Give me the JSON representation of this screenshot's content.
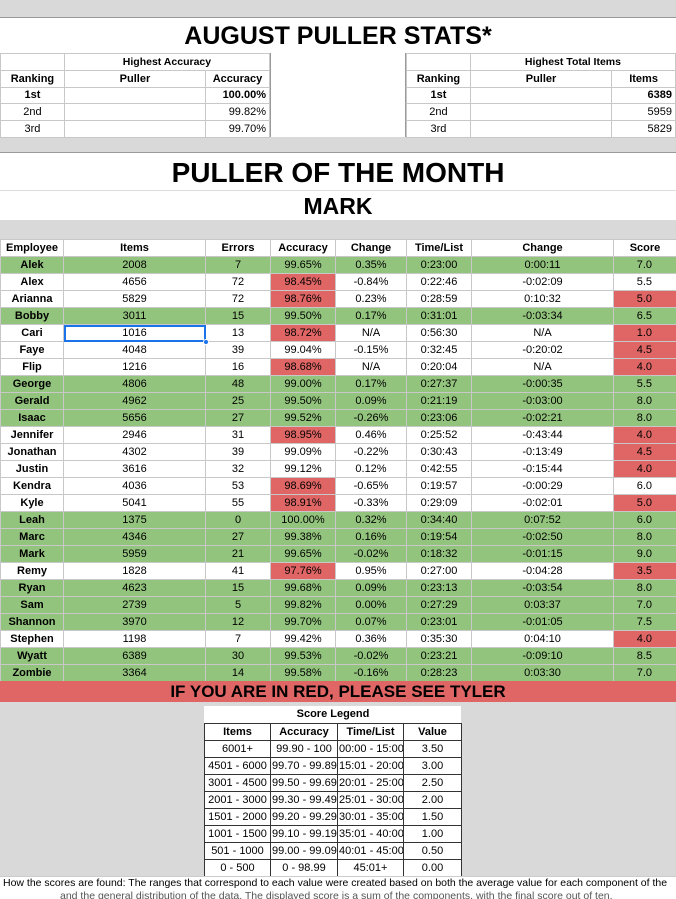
{
  "title": "AUGUST PULLER STATS*",
  "highest_accuracy": {
    "title": "Highest Accuracy",
    "headers": [
      "Ranking",
      "Puller",
      "Accuracy"
    ],
    "rows": [
      {
        "rank": "1st",
        "puller": "",
        "value": "100.00%"
      },
      {
        "rank": "2nd",
        "puller": "",
        "value": "99.82%"
      },
      {
        "rank": "3rd",
        "puller": "",
        "value": "99.70%"
      }
    ]
  },
  "highest_items": {
    "title": "Highest Total Items",
    "headers": [
      "Ranking",
      "Puller",
      "Items"
    ],
    "rows": [
      {
        "rank": "1st",
        "puller": "",
        "value": "6389"
      },
      {
        "rank": "2nd",
        "puller": "",
        "value": "5959"
      },
      {
        "rank": "3rd",
        "puller": "",
        "value": "5829"
      }
    ]
  },
  "puller_of_month": {
    "title": "PULLER OF THE MONTH",
    "name": "MARK"
  },
  "table": {
    "headers": [
      "Employee",
      "Items",
      "Errors",
      "Accuracy",
      "Change",
      "Time/List",
      "Change",
      "Score"
    ],
    "rows": [
      {
        "emp": "Alek",
        "items": "2008",
        "errors": "7",
        "acc": "99.65%",
        "chg": "0.35%",
        "time": "0:23:00",
        "tchg": "0:00:11",
        "score": "7.0",
        "row": "g",
        "acc_red": false,
        "score_red": false
      },
      {
        "emp": "Alex",
        "items": "4656",
        "errors": "72",
        "acc": "98.45%",
        "chg": "-0.84%",
        "time": "0:22:46",
        "tchg": "-0:02:09",
        "score": "5.5",
        "row": "w",
        "acc_red": true,
        "score_red": false
      },
      {
        "emp": "Arianna",
        "items": "5829",
        "errors": "72",
        "acc": "98.76%",
        "chg": "0.23%",
        "time": "0:28:59",
        "tchg": "0:10:32",
        "score": "5.0",
        "row": "w",
        "acc_red": true,
        "score_red": true
      },
      {
        "emp": "Bobby",
        "items": "3011",
        "errors": "15",
        "acc": "99.50%",
        "chg": "0.17%",
        "time": "0:31:01",
        "tchg": "-0:03:34",
        "score": "6.5",
        "row": "g",
        "acc_red": false,
        "score_red": false
      },
      {
        "emp": "Cari",
        "items": "1016",
        "errors": "13",
        "acc": "98.72%",
        "chg": "N/A",
        "time": "0:56:30",
        "tchg": "N/A",
        "score": "1.0",
        "row": "w",
        "acc_red": true,
        "score_red": true
      },
      {
        "emp": "Faye",
        "items": "4048",
        "errors": "39",
        "acc": "99.04%",
        "chg": "-0.15%",
        "time": "0:32:45",
        "tchg": "-0:20:02",
        "score": "4.5",
        "row": "w",
        "acc_red": false,
        "score_red": true
      },
      {
        "emp": "Flip",
        "items": "1216",
        "errors": "16",
        "acc": "98.68%",
        "chg": "N/A",
        "time": "0:20:04",
        "tchg": "N/A",
        "score": "4.0",
        "row": "w",
        "acc_red": true,
        "score_red": true
      },
      {
        "emp": "George",
        "items": "4806",
        "errors": "48",
        "acc": "99.00%",
        "chg": "0.17%",
        "time": "0:27:37",
        "tchg": "-0:00:35",
        "score": "5.5",
        "row": "g",
        "acc_red": false,
        "score_red": false
      },
      {
        "emp": "Gerald",
        "items": "4962",
        "errors": "25",
        "acc": "99.50%",
        "chg": "0.09%",
        "time": "0:21:19",
        "tchg": "-0:03:00",
        "score": "8.0",
        "row": "g",
        "acc_red": false,
        "score_red": false
      },
      {
        "emp": "Isaac",
        "items": "5656",
        "errors": "27",
        "acc": "99.52%",
        "chg": "-0.26%",
        "time": "0:23:06",
        "tchg": "-0:02:21",
        "score": "8.0",
        "row": "g",
        "acc_red": false,
        "score_red": false
      },
      {
        "emp": "Jennifer",
        "items": "2946",
        "errors": "31",
        "acc": "98.95%",
        "chg": "0.46%",
        "time": "0:25:52",
        "tchg": "-0:43:44",
        "score": "4.0",
        "row": "w",
        "acc_red": true,
        "score_red": true
      },
      {
        "emp": "Jonathan",
        "items": "4302",
        "errors": "39",
        "acc": "99.09%",
        "chg": "-0.22%",
        "time": "0:30:43",
        "tchg": "-0:13:49",
        "score": "4.5",
        "row": "w",
        "acc_red": false,
        "score_red": true
      },
      {
        "emp": "Justin",
        "items": "3616",
        "errors": "32",
        "acc": "99.12%",
        "chg": "0.12%",
        "time": "0:42:55",
        "tchg": "-0:15:44",
        "score": "4.0",
        "row": "w",
        "acc_red": false,
        "score_red": true
      },
      {
        "emp": "Kendra",
        "items": "4036",
        "errors": "53",
        "acc": "98.69%",
        "chg": "-0.65%",
        "time": "0:19:57",
        "tchg": "-0:00:29",
        "score": "6.0",
        "row": "w",
        "acc_red": true,
        "score_red": false
      },
      {
        "emp": "Kyle",
        "items": "5041",
        "errors": "55",
        "acc": "98.91%",
        "chg": "-0.33%",
        "time": "0:29:09",
        "tchg": "-0:02:01",
        "score": "5.0",
        "row": "w",
        "acc_red": true,
        "score_red": true
      },
      {
        "emp": "Leah",
        "items": "1375",
        "errors": "0",
        "acc": "100.00%",
        "chg": "0.32%",
        "time": "0:34:40",
        "tchg": "0:07:52",
        "score": "6.0",
        "row": "g",
        "acc_red": false,
        "score_red": false
      },
      {
        "emp": "Marc",
        "items": "4346",
        "errors": "27",
        "acc": "99.38%",
        "chg": "0.16%",
        "time": "0:19:54",
        "tchg": "-0:02:50",
        "score": "8.0",
        "row": "g",
        "acc_red": false,
        "score_red": false
      },
      {
        "emp": "Mark",
        "items": "5959",
        "errors": "21",
        "acc": "99.65%",
        "chg": "-0.02%",
        "time": "0:18:32",
        "tchg": "-0:01:15",
        "score": "9.0",
        "row": "g",
        "acc_red": false,
        "score_red": false
      },
      {
        "emp": "Remy",
        "items": "1828",
        "errors": "41",
        "acc": "97.76%",
        "chg": "0.95%",
        "time": "0:27:00",
        "tchg": "-0:04:28",
        "score": "3.5",
        "row": "w",
        "acc_red": true,
        "score_red": true
      },
      {
        "emp": "Ryan",
        "items": "4623",
        "errors": "15",
        "acc": "99.68%",
        "chg": "0.09%",
        "time": "0:23:13",
        "tchg": "-0:03:54",
        "score": "8.0",
        "row": "g",
        "acc_red": false,
        "score_red": false
      },
      {
        "emp": "Sam",
        "items": "2739",
        "errors": "5",
        "acc": "99.82%",
        "chg": "0.00%",
        "time": "0:27:29",
        "tchg": "0:03:37",
        "score": "7.0",
        "row": "g",
        "acc_red": false,
        "score_red": false
      },
      {
        "emp": "Shannon",
        "items": "3970",
        "errors": "12",
        "acc": "99.70%",
        "chg": "0.07%",
        "time": "0:23:01",
        "tchg": "-0:01:05",
        "score": "7.5",
        "row": "g",
        "acc_red": false,
        "score_red": false
      },
      {
        "emp": "Stephen",
        "items": "1198",
        "errors": "7",
        "acc": "99.42%",
        "chg": "0.36%",
        "time": "0:35:30",
        "tchg": "0:04:10",
        "score": "4.0",
        "row": "w",
        "acc_red": false,
        "score_red": true
      },
      {
        "emp": "Wyatt",
        "items": "6389",
        "errors": "30",
        "acc": "99.53%",
        "chg": "-0.02%",
        "time": "0:23:21",
        "tchg": "-0:09:10",
        "score": "8.5",
        "row": "g",
        "acc_red": false,
        "score_red": false
      },
      {
        "emp": "Zombie",
        "items": "3364",
        "errors": "14",
        "acc": "99.58%",
        "chg": "-0.16%",
        "time": "0:28:23",
        "tchg": "0:03:30",
        "score": "7.0",
        "row": "g",
        "acc_red": false,
        "score_red": false
      }
    ]
  },
  "red_notice": "IF YOU ARE IN RED, PLEASE SEE TYLER",
  "legend": {
    "title": "Score Legend",
    "headers": [
      "Items",
      "Accuracy",
      "Time/List",
      "Value"
    ],
    "rows": [
      [
        "6001+",
        "99.90 - 100",
        "00:00 - 15:00",
        "3.50"
      ],
      [
        "4501 - 6000",
        "99.70 - 99.89",
        "15:01 - 20:00",
        "3.00"
      ],
      [
        "3001 - 4500",
        "99.50 - 99.69",
        "20:01 - 25:00",
        "2.50"
      ],
      [
        "2001 - 3000",
        "99.30 - 99.49",
        "25:01 - 30:00",
        "2.00"
      ],
      [
        "1501 - 2000",
        "99.20 - 99.29",
        "30:01 - 35:00",
        "1.50"
      ],
      [
        "1001 - 1500",
        "99.10 - 99.19",
        "35:01 - 40:00",
        "1.00"
      ],
      [
        "501 - 1000",
        "99.00 - 99.09",
        "40:01 - 45:00",
        "0.50"
      ],
      [
        "0 - 500",
        "0 - 98.99",
        "45:01+",
        "0.00"
      ]
    ]
  },
  "footnote": "How the scores are found: The ranges that correspond to each value were created based on both the average value for each component of the",
  "footnote2": "and the general distribution of the data. The displayed score is a sum of the components, with the final score out of ten."
}
